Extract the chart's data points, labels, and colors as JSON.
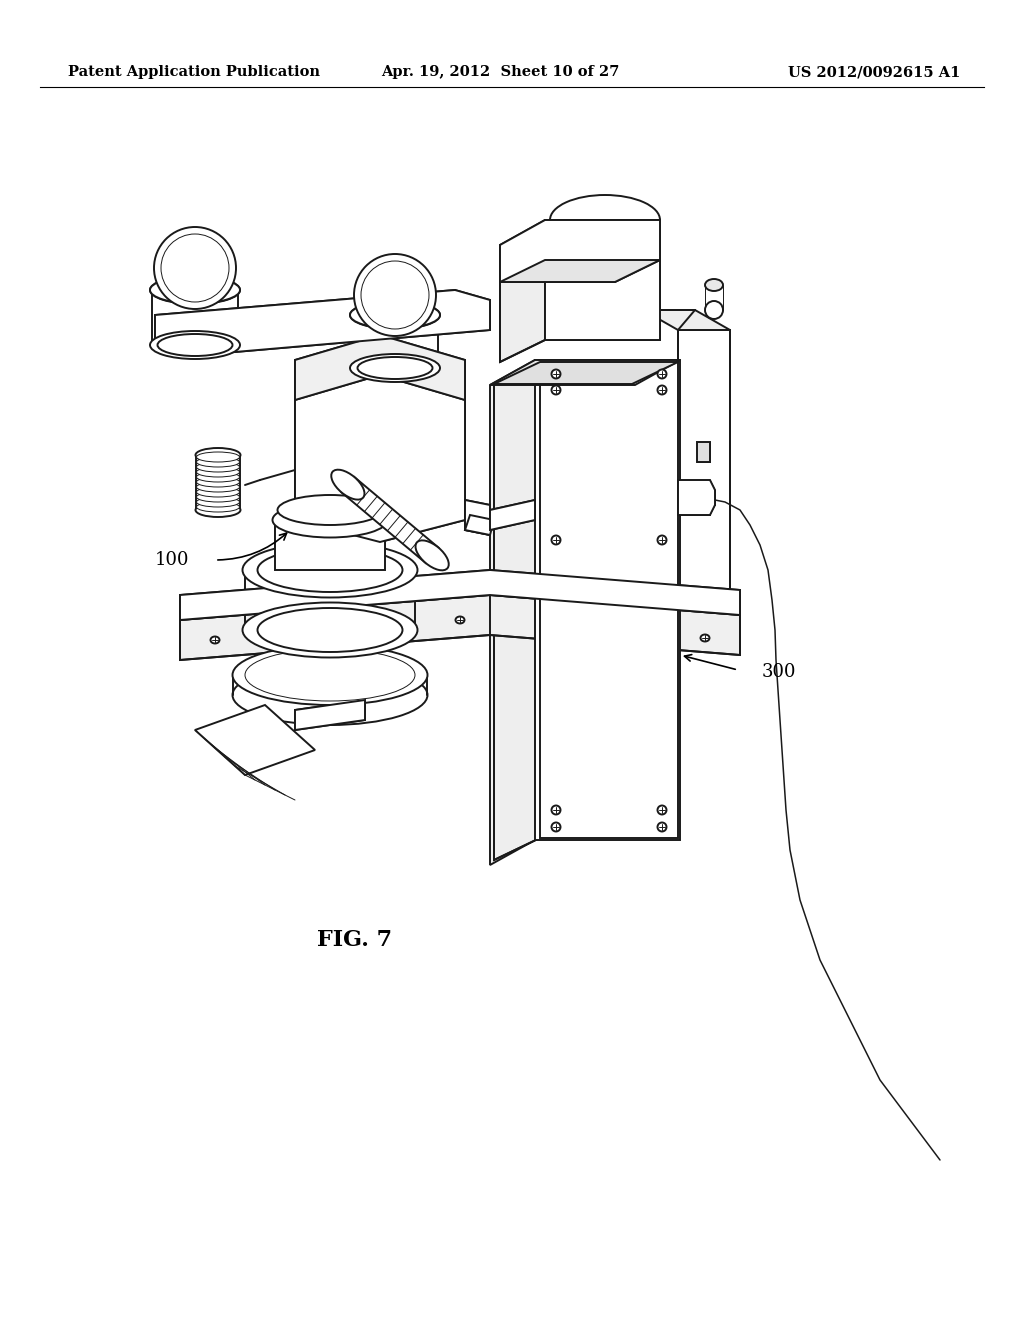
{
  "background_color": "#ffffff",
  "header_left": "Patent Application Publication",
  "header_center": "Apr. 19, 2012  Sheet 10 of 27",
  "header_right": "US 2012/0092615 A1",
  "figure_label": "FIG. 7",
  "label_100": "100",
  "label_300": "300",
  "line_color": "#1a1a1a",
  "lw_main": 1.4,
  "lw_thin": 0.7,
  "lw_thick": 2.0
}
